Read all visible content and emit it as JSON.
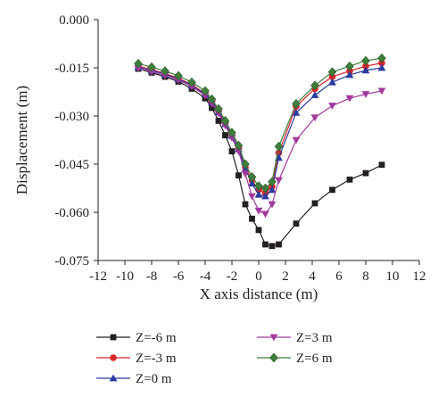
{
  "chart_data": {
    "type": "line",
    "title": "",
    "xlabel": "X axis distance (m)",
    "ylabel": "Displacement (m)",
    "xlim": [
      -12,
      12
    ],
    "ylim": [
      -0.075,
      0.0
    ],
    "xticks": [
      "-12",
      "-10",
      "-8",
      "-6",
      "-4",
      "-2",
      "0",
      "2",
      "4",
      "6",
      "8",
      "10",
      "12"
    ],
    "yticks": [
      "0.000",
      "-0.015",
      "-0.030",
      "-0.045",
      "-0.060",
      "-0.075"
    ],
    "grid": false,
    "legend_position": "bottom",
    "x": [
      -9,
      -8,
      -7,
      -6,
      -5,
      -4,
      -3.5,
      -3,
      -2.5,
      -2,
      -1.5,
      -1,
      -0.5,
      0,
      0.5,
      1,
      1.5,
      2.8,
      4.2,
      5.5,
      6.8,
      8,
      9.2
    ],
    "series": [
      {
        "name": "Z=-6 m",
        "color": "#231f20",
        "marker": "square",
        "values": [
          -0.0153,
          -0.0165,
          -0.0178,
          -0.0193,
          -0.0215,
          -0.0245,
          -0.0275,
          -0.0315,
          -0.036,
          -0.041,
          -0.0485,
          -0.0575,
          -0.062,
          -0.0655,
          -0.07,
          -0.0705,
          -0.07,
          -0.0635,
          -0.0572,
          -0.053,
          -0.0498,
          -0.0478,
          -0.0452
        ]
      },
      {
        "name": "Z=-3 m",
        "color": "#d7262a",
        "marker": "circle",
        "values": [
          -0.0145,
          -0.0155,
          -0.0168,
          -0.0182,
          -0.0202,
          -0.023,
          -0.0255,
          -0.0285,
          -0.0322,
          -0.036,
          -0.04,
          -0.046,
          -0.05,
          -0.053,
          -0.054,
          -0.052,
          -0.0415,
          -0.027,
          -0.0215,
          -0.0178,
          -0.016,
          -0.0145,
          -0.0135
        ]
      },
      {
        "name": "Z=0 m",
        "color": "#2b3b9e",
        "marker": "triangle-up",
        "values": [
          -0.0148,
          -0.0158,
          -0.017,
          -0.0185,
          -0.0205,
          -0.0232,
          -0.0258,
          -0.0288,
          -0.0325,
          -0.0362,
          -0.0403,
          -0.0465,
          -0.051,
          -0.0545,
          -0.055,
          -0.053,
          -0.043,
          -0.029,
          -0.0235,
          -0.0195,
          -0.0172,
          -0.0158,
          -0.015
        ]
      },
      {
        "name": "Z=3 m",
        "color": "#a13a9d",
        "marker": "triangle-down",
        "values": [
          -0.0152,
          -0.0162,
          -0.0174,
          -0.0188,
          -0.0208,
          -0.0236,
          -0.0262,
          -0.0292,
          -0.033,
          -0.0368,
          -0.041,
          -0.048,
          -0.055,
          -0.0595,
          -0.0605,
          -0.0575,
          -0.05,
          -0.0375,
          -0.0305,
          -0.0268,
          -0.0245,
          -0.0232,
          -0.0222
        ]
      },
      {
        "name": "Z=6 m",
        "color": "#3f7d3c",
        "marker": "diamond",
        "values": [
          -0.0137,
          -0.0148,
          -0.016,
          -0.0175,
          -0.0195,
          -0.0222,
          -0.0248,
          -0.0278,
          -0.0315,
          -0.0352,
          -0.0392,
          -0.045,
          -0.049,
          -0.0518,
          -0.0525,
          -0.0505,
          -0.0395,
          -0.0262,
          -0.0205,
          -0.0163,
          -0.0145,
          -0.0128,
          -0.012
        ]
      }
    ]
  }
}
